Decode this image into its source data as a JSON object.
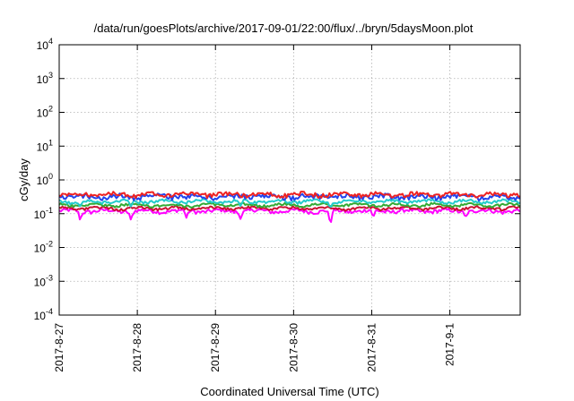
{
  "chart_data": {
    "type": "line",
    "title": "/data/run/goesPlots/archive/2017-09-01/22:00/flux/../bryn/5daysMoon.plot",
    "xlabel": "Coordinated Universal Time (UTC)",
    "ylabel": "cGy/day",
    "y_scale": "log",
    "ylim": [
      0.0001,
      10000
    ],
    "y_ticks": [
      {
        "value": 0.0001,
        "base": "10",
        "exp": "-4"
      },
      {
        "value": 0.001,
        "base": "10",
        "exp": "-3"
      },
      {
        "value": 0.01,
        "base": "10",
        "exp": "-2"
      },
      {
        "value": 0.1,
        "base": "10",
        "exp": "-1"
      },
      {
        "value": 1,
        "base": "10",
        "exp": "0"
      },
      {
        "value": 10,
        "base": "10",
        "exp": "1"
      },
      {
        "value": 100,
        "base": "10",
        "exp": "2"
      },
      {
        "value": 1000,
        "base": "10",
        "exp": "3"
      },
      {
        "value": 10000,
        "base": "10",
        "exp": "4"
      }
    ],
    "x_range": [
      "2017-08-27",
      "2017-09-01T22:00"
    ],
    "x_ticks": [
      "2017-8-27",
      "2017-8-28",
      "2017-8-29",
      "2017-8-30",
      "2017-8-31",
      "2017-9-1"
    ],
    "grid": true,
    "series": [
      {
        "color": "#ff00ff",
        "level": 0.12,
        "noise": 0.13,
        "dips": [
          {
            "x": 0.27,
            "to": 0.065
          },
          {
            "x": 0.92,
            "to": 0.065
          },
          {
            "x": 1.63,
            "to": 0.075
          },
          {
            "x": 2.32,
            "to": 0.07
          },
          {
            "x": 3.47,
            "to": 0.045
          },
          {
            "x": 4.02,
            "to": 0.08
          },
          {
            "x": 5.2,
            "to": 0.08
          }
        ]
      },
      {
        "color": "#cc1133",
        "level": 0.145,
        "noise": 0.09,
        "dips": []
      },
      {
        "color": "#33aa33",
        "level": 0.18,
        "noise": 0.09,
        "dips": []
      },
      {
        "color": "#22cccc",
        "level": 0.23,
        "noise": 0.1,
        "dips": [
          {
            "x": 0.27,
            "to": 0.16
          },
          {
            "x": 0.92,
            "to": 0.16
          },
          {
            "x": 2.32,
            "to": 0.17
          },
          {
            "x": 3.47,
            "to": 0.15
          }
        ]
      },
      {
        "color": "#2244ee",
        "level": 0.32,
        "noise": 0.17,
        "dips": []
      },
      {
        "color": "#ee2222",
        "level": 0.37,
        "noise": 0.14,
        "dips": []
      }
    ]
  }
}
